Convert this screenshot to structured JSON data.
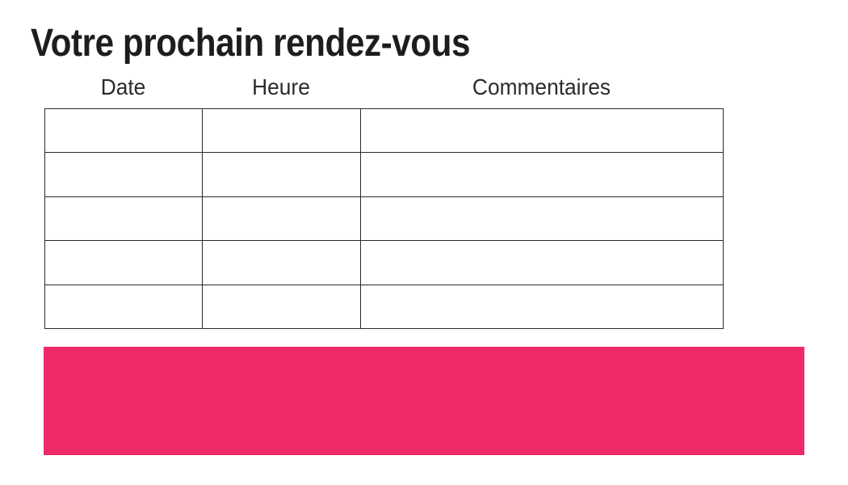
{
  "page": {
    "title": "Votre prochain rendez-vous"
  },
  "table": {
    "columns": [
      {
        "key": "date",
        "label": "Date"
      },
      {
        "key": "heure",
        "label": "Heure"
      },
      {
        "key": "commentaires",
        "label": "Commentaires"
      }
    ],
    "rows": [
      [
        "",
        "",
        ""
      ],
      [
        "",
        "",
        ""
      ],
      [
        "",
        "",
        ""
      ],
      [
        "",
        "",
        ""
      ],
      [
        "",
        "",
        ""
      ]
    ]
  },
  "banner": {
    "text": "",
    "color": "#EE2A69"
  },
  "colors": {
    "title_text": "#1d1d1b",
    "header_text": "#2b2b2b",
    "table_border": "#2a2a2a",
    "background": "#ffffff"
  }
}
